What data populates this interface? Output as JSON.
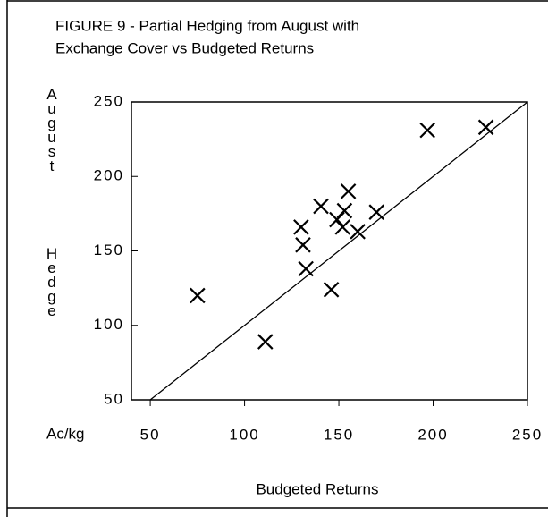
{
  "chart_data": {
    "type": "scatter",
    "title": "FIGURE 9 -  Partial Hedging from August with",
    "subtitle": "Exchange Cover vs Budgeted Returns",
    "y_label": "August",
    "y_label_2": "Hedge",
    "y_unit": "Ac/kg",
    "x_label": "Budgeted Returns",
    "x": [
      75,
      111,
      130,
      131,
      132.5,
      140.5,
      146,
      149,
      152,
      153,
      155,
      160,
      170,
      197,
      228
    ],
    "values": [
      120,
      89,
      166,
      154,
      138,
      180,
      124,
      171,
      166,
      177,
      190,
      163,
      176,
      231,
      233
    ],
    "color": "#000000",
    "xlim": [
      40,
      250
    ],
    "xticks": [
      50,
      100,
      150,
      200,
      250
    ],
    "ylim": [
      50,
      250
    ],
    "yticks": [
      50,
      100,
      150,
      200,
      250
    ],
    "identity_line": true
  }
}
